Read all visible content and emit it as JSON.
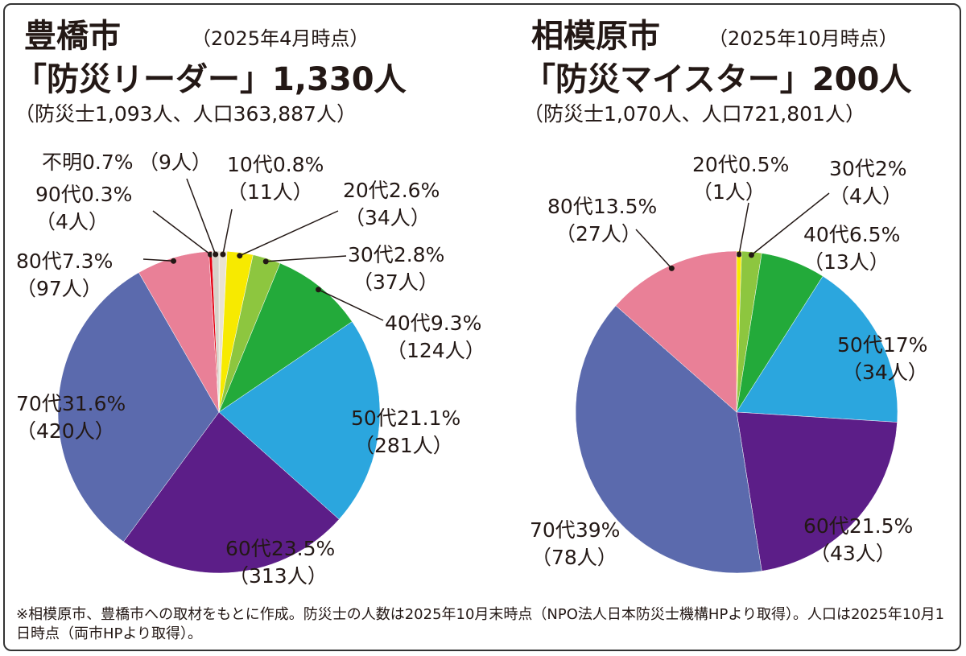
{
  "chart_data": [
    {
      "type": "pie",
      "title": "豊橋市",
      "date": "（2025年4月時点）",
      "subtitle": "「防災リーダー」1,330人",
      "note": "（防災士1,093人、人口363,887人）",
      "categories": [
        "10代",
        "20代",
        "30代",
        "40代",
        "50代",
        "60代",
        "70代",
        "80代",
        "90代",
        "不明"
      ],
      "values": [
        0.8,
        2.6,
        2.8,
        9.3,
        21.1,
        23.5,
        31.6,
        7.3,
        0.3,
        0.7
      ],
      "value_labels": [
        "0.8%",
        "2.6%",
        "2.8%",
        "9.3%",
        "21.1%",
        "23.5%",
        "31.6%",
        "7.3%",
        "0.3%",
        "0.7%"
      ],
      "count_labels": [
        "（11人）",
        "（34人）",
        "（37人）",
        "（124人）",
        "（281人）",
        "（313人）",
        "（420人）",
        "（97人）",
        "（4人）",
        "（9人）"
      ],
      "colors": [
        "#e9e2d2",
        "#f7ea00",
        "#8dc63f",
        "#23aa3a",
        "#2ba6de",
        "#5c1e88",
        "#5b6aad",
        "#e98097",
        "#e50012",
        "#d6d1c8"
      ]
    },
    {
      "type": "pie",
      "title": "相模原市",
      "date": "（2025年10月時点）",
      "subtitle": "「防災マイスター」200人",
      "note": "（防災士1,070人、人口721,801人）",
      "categories": [
        "20代",
        "30代",
        "40代",
        "50代",
        "60代",
        "70代",
        "80代"
      ],
      "values": [
        0.5,
        2,
        6.5,
        17,
        21.5,
        39,
        13.5
      ],
      "value_labels": [
        "0.5%",
        "2%",
        "6.5%",
        "17%",
        "21.5%",
        "39%",
        "13.5%"
      ],
      "count_labels": [
        "（1人）",
        "（4人）",
        "（13人）",
        "（34人）",
        "（43人）",
        "（78人）",
        "（27人）"
      ],
      "colors": [
        "#f7ea00",
        "#8dc63f",
        "#23aa3a",
        "#2ba6de",
        "#5c1e88",
        "#5b6aad",
        "#e98097"
      ]
    }
  ],
  "footnote": "※相模原市、豊橋市への取材をもとに作成。防災士の人数は2025年10月末時点（NPO法人日本防災士機構HPより取得）。人口は2025年10月1日時点（両市HPより取得）。"
}
